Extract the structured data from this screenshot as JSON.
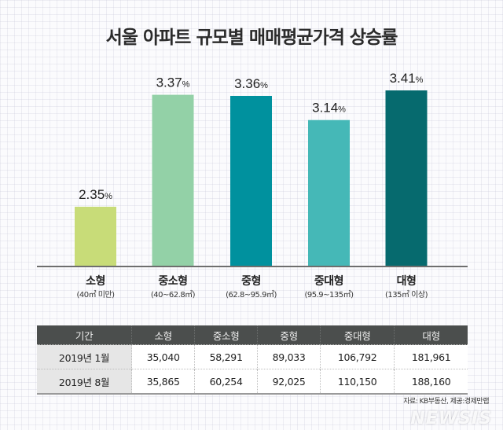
{
  "chart_data": {
    "type": "bar",
    "title": "서울 아파트 규모별 매매평균가격 상승률",
    "xlabel": "",
    "ylabel": "",
    "unit": "%",
    "ylim": [
      0,
      3.6
    ],
    "grid": false,
    "categories": [
      "소형",
      "중소형",
      "중형",
      "중대형",
      "대형"
    ],
    "category_ranges": [
      "(40㎡ 미만)",
      "(40~62.8㎡)",
      "(62.8~95.9㎡)",
      "(95.9~135㎡)",
      "(135㎡ 이상)"
    ],
    "values": [
      2.35,
      3.37,
      3.36,
      3.14,
      3.41
    ],
    "value_labels": [
      "2.35",
      "3.37",
      "3.36",
      "3.14",
      "3.41"
    ],
    "colors": [
      "#c8dc78",
      "#93d1a7",
      "#00919e",
      "#45b8b7",
      "#066a6e"
    ]
  },
  "table": {
    "headers": [
      "기간",
      "소형",
      "중소형",
      "중형",
      "중대형",
      "대형"
    ],
    "rows": [
      [
        "2019년 1월",
        "35,040",
        "58,291",
        "89,033",
        "106,792",
        "181,961"
      ],
      [
        "2019년 8월",
        "35,865",
        "60,254",
        "92,025",
        "110,150",
        "188,160"
      ]
    ]
  },
  "source": "자료: KB부동산, 제공:경제만랩",
  "watermark": "NEWSIS"
}
